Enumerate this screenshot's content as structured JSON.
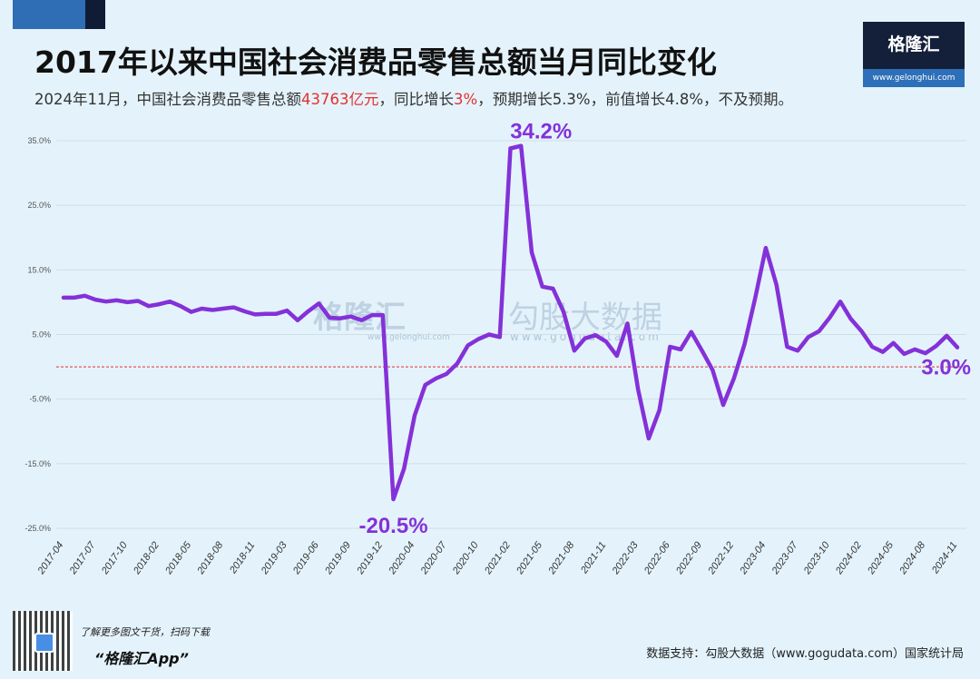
{
  "header": {
    "title": "2017年以来中国社会消费品零售总额当月同比变化",
    "subtitle_parts": [
      "2024年11月，中国社会消费品零售总额",
      "43763亿元",
      "，同比增长",
      "3%",
      "，预期增长5.3%，前值增长4.8%，不及预期。"
    ]
  },
  "logo": {
    "name": "格隆汇",
    "url": "www.gelonghui.com"
  },
  "watermark": {
    "left": "格隆汇",
    "left_url": "www.gelonghui.com",
    "right": "勾股大数据",
    "right_url": "www.gogudata.com"
  },
  "footer": {
    "promo_line": "了解更多图文干货，扫码下载",
    "app_name": "“格隆汇App”",
    "source": "数据支持：勾股大数据（www.gogudata.com）国家统计局"
  },
  "colors": {
    "line": "#8431d9",
    "zero_line": "#e53030",
    "grid": "#cfdde6",
    "annotation": "#8431d9"
  },
  "chart_data": {
    "type": "line",
    "title": "2017年以来中国社会消费品零售总额当月同比变化",
    "xlabel": "",
    "ylabel": "",
    "ylim": [
      -25,
      35
    ],
    "yticks": [
      35,
      25,
      15,
      5,
      -5,
      -15,
      -25
    ],
    "ytick_labels": [
      "35.0%",
      "25.0%",
      "15.0%",
      "5.0%",
      "-5.0%",
      "-15.0%",
      "-25.0%"
    ],
    "grid": true,
    "x": [
      "2017-04",
      "2017-05",
      "2017-06",
      "2017-07",
      "2017-08",
      "2017-09",
      "2017-10",
      "2017-11",
      "2017-12",
      "2018-02",
      "2018-03",
      "2018-04",
      "2018-05",
      "2018-06",
      "2018-07",
      "2018-08",
      "2018-09",
      "2018-10",
      "2018-11",
      "2018-12",
      "2019-02",
      "2019-03",
      "2019-04",
      "2019-05",
      "2019-06",
      "2019-07",
      "2019-08",
      "2019-09",
      "2019-10",
      "2019-11",
      "2019-12",
      "2020-02",
      "2020-03",
      "2020-04",
      "2020-05",
      "2020-06",
      "2020-07",
      "2020-08",
      "2020-09",
      "2020-10",
      "2020-11",
      "2020-12",
      "2021-02",
      "2021-03",
      "2021-04",
      "2021-05",
      "2021-06",
      "2021-07",
      "2021-08",
      "2021-09",
      "2021-10",
      "2021-11",
      "2021-12",
      "2022-02",
      "2022-03",
      "2022-04",
      "2022-05",
      "2022-06",
      "2022-07",
      "2022-08",
      "2022-09",
      "2022-10",
      "2022-11",
      "2022-12",
      "2023-02",
      "2023-03",
      "2023-04",
      "2023-05",
      "2023-06",
      "2023-07",
      "2023-08",
      "2023-09",
      "2023-10",
      "2023-11",
      "2023-12",
      "2024-02",
      "2024-03",
      "2024-04",
      "2024-05",
      "2024-06",
      "2024-07",
      "2024-08",
      "2024-09",
      "2024-10",
      "2024-11"
    ],
    "xtick_labels": [
      "2017-04",
      "2017-07",
      "2017-10",
      "2018-02",
      "2018-05",
      "2018-08",
      "2018-11",
      "2019-03",
      "2019-06",
      "2019-09",
      "2019-12",
      "2020-04",
      "2020-07",
      "2020-10",
      "2021-02",
      "2021-05",
      "2021-08",
      "2021-11",
      "2022-03",
      "2022-06",
      "2022-09",
      "2022-12",
      "2023-04",
      "2023-07",
      "2023-10",
      "2024-02",
      "2024-05",
      "2024-08",
      "2024-11"
    ],
    "series": [
      {
        "name": "社会消费品零售总额当月同比(%)",
        "values": [
          10.7,
          10.7,
          11.0,
          10.4,
          10.1,
          10.3,
          10.0,
          10.2,
          9.4,
          9.7,
          10.1,
          9.4,
          8.5,
          9.0,
          8.8,
          9.0,
          9.2,
          8.6,
          8.1,
          8.2,
          8.2,
          8.7,
          7.2,
          8.6,
          9.8,
          7.6,
          7.5,
          7.8,
          7.2,
          8.0,
          8.0,
          -20.5,
          -15.8,
          -7.5,
          -2.8,
          -1.8,
          -1.1,
          0.5,
          3.3,
          4.3,
          5.0,
          4.6,
          33.8,
          34.2,
          17.7,
          12.4,
          12.1,
          8.5,
          2.5,
          4.4,
          4.9,
          3.9,
          1.7,
          6.7,
          -3.5,
          -11.1,
          -6.7,
          3.1,
          2.7,
          5.4,
          2.5,
          -0.5,
          -5.9,
          -1.8,
          3.5,
          10.6,
          18.4,
          12.7,
          3.1,
          2.5,
          4.6,
          5.5,
          7.6,
          10.1,
          7.4,
          5.5,
          3.1,
          2.3,
          3.7,
          2.0,
          2.7,
          2.1,
          3.2,
          4.8,
          3.0
        ]
      }
    ],
    "annotations": [
      {
        "x": "2021-03",
        "text": "34.2%"
      },
      {
        "x": "2020-02",
        "text": "-20.5%"
      },
      {
        "x": "2024-11",
        "text": "3.0%"
      }
    ],
    "reference_line": {
      "y": 0,
      "style": "dashed"
    }
  }
}
